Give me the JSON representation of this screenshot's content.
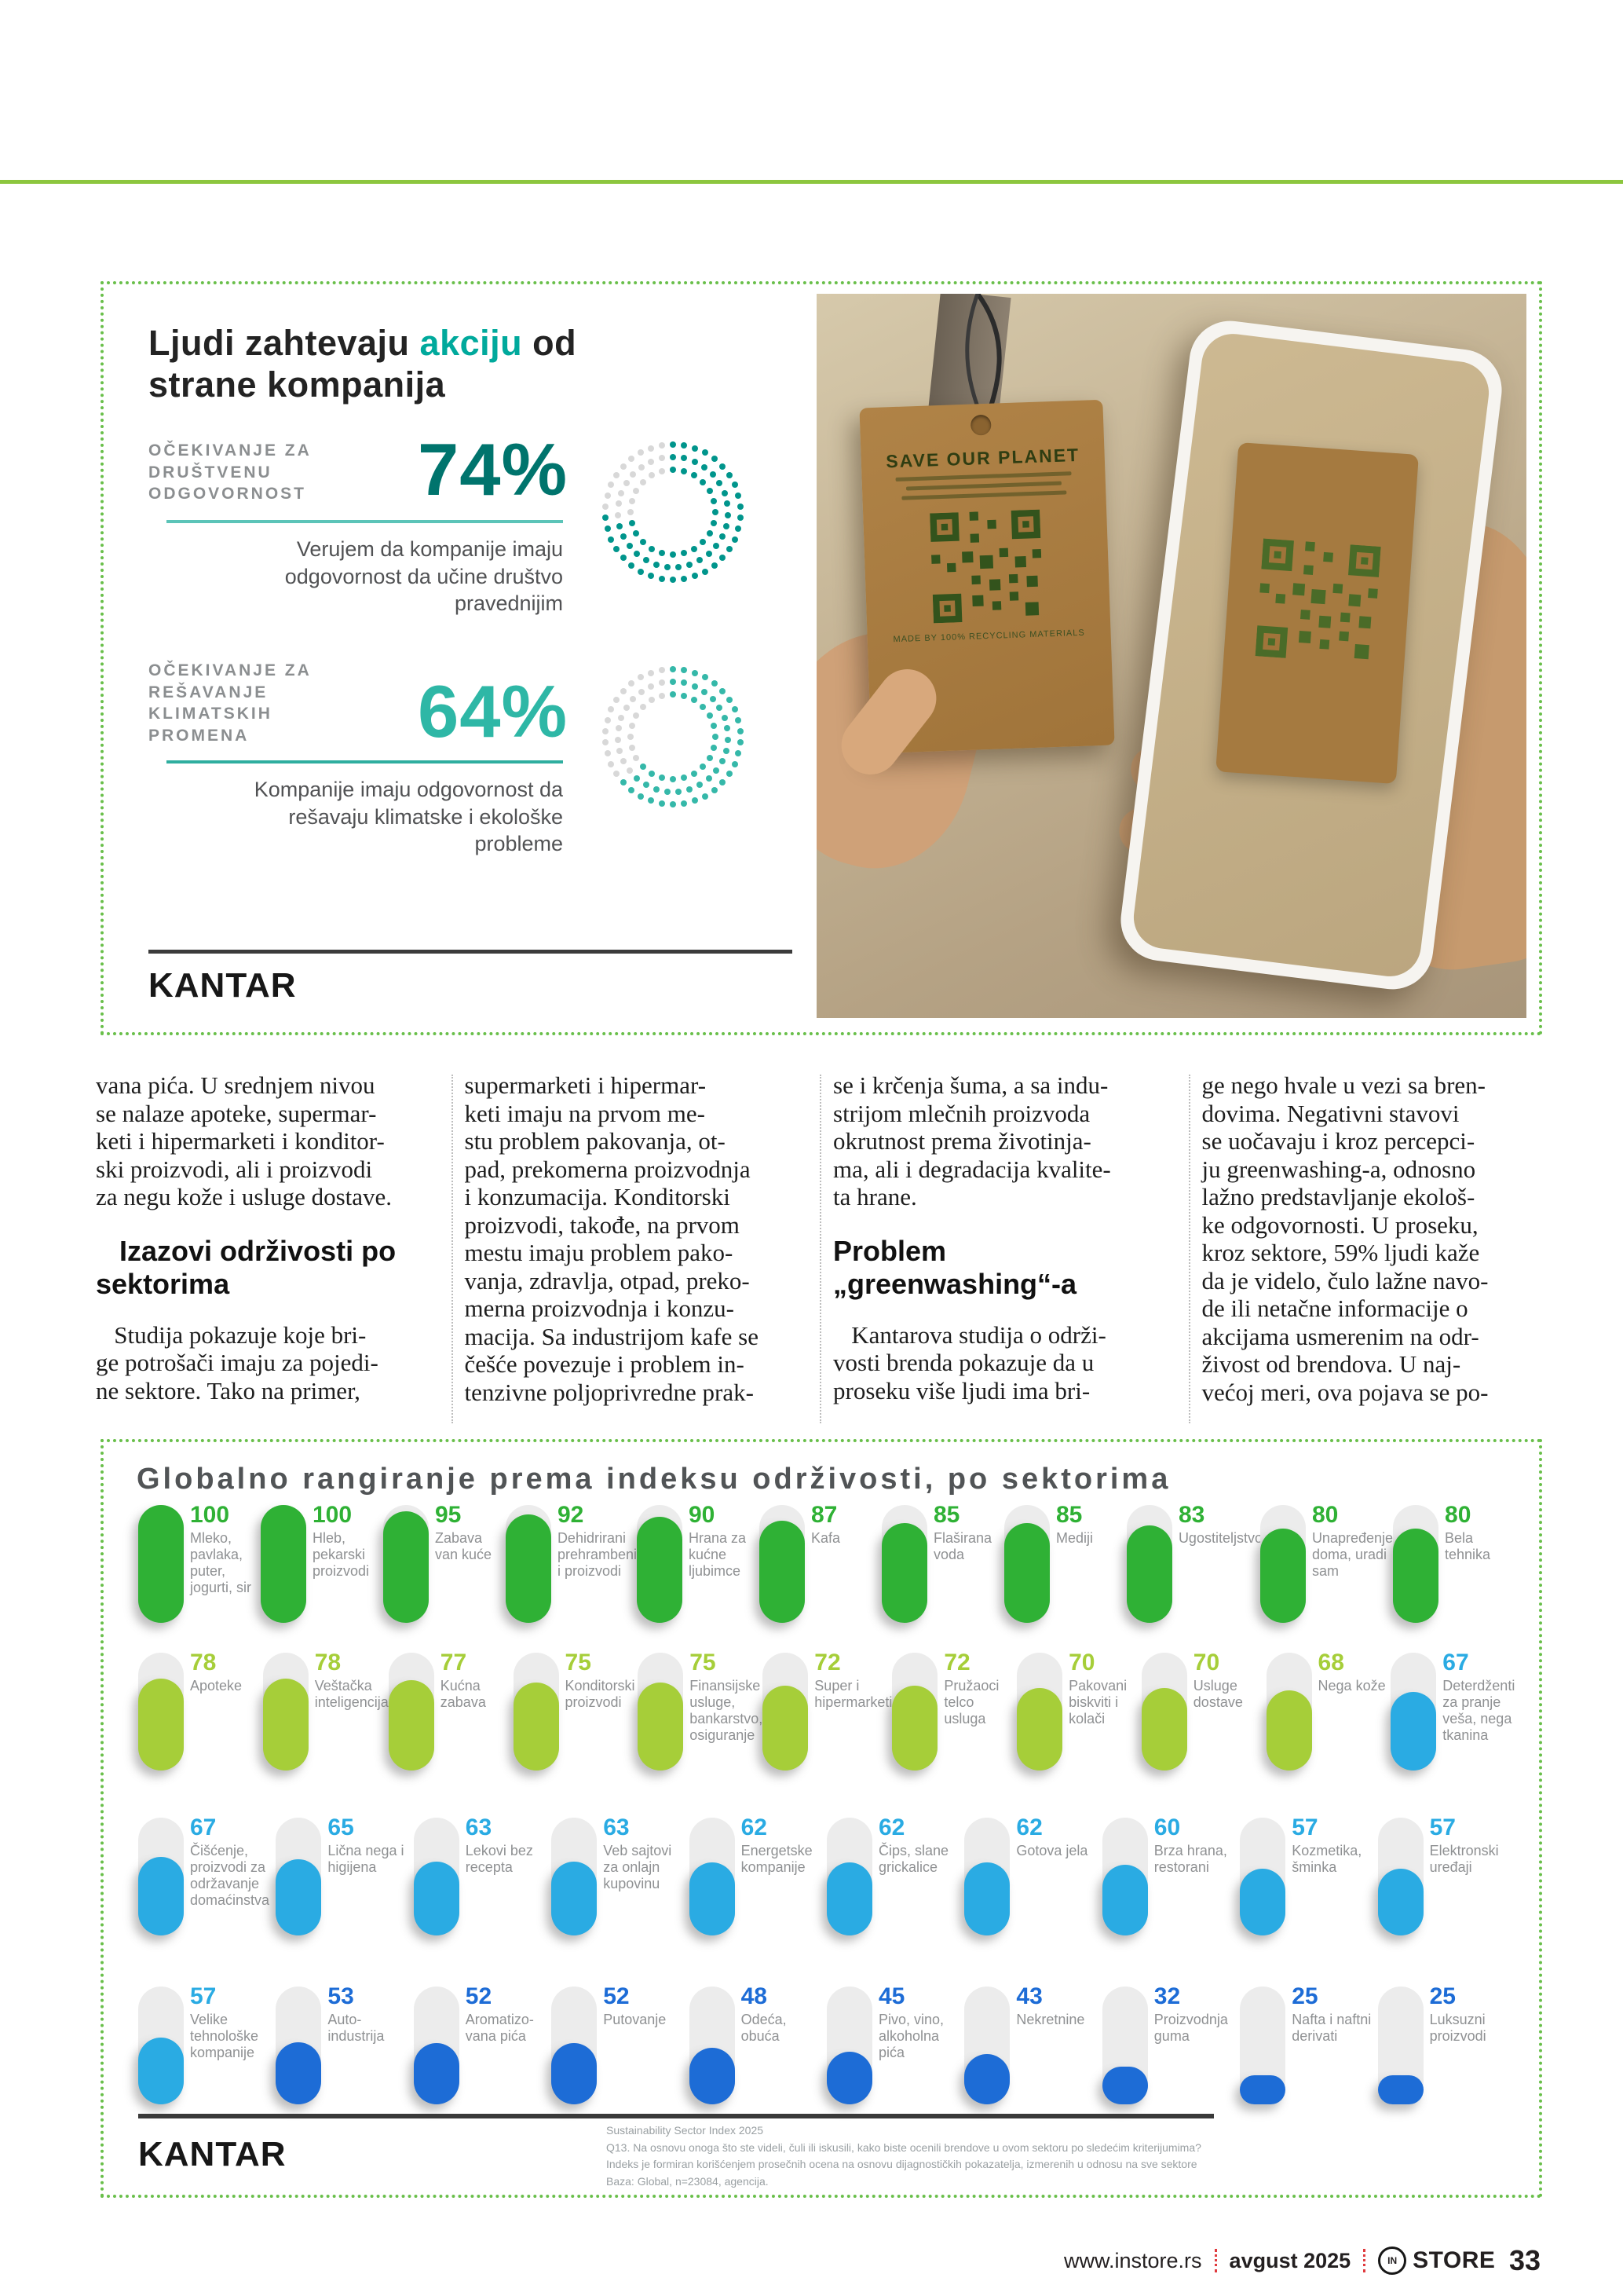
{
  "colors": {
    "top_rule": "#8cc63e",
    "box_border": "#69bf4a",
    "accent_teal": "#00a99c",
    "stat1_value": "#00746d",
    "stat2_value": "#2eb7a6",
    "donut_rest": "#d8d8d8",
    "bar_green": "#2fb135",
    "bar_lime": "#a6ce39",
    "bar_cyan": "#2aabe3",
    "bar_blue": "#1d6cd6"
  },
  "infographic": {
    "title_pre": "Ljudi zahtevaju ",
    "title_accent": "akciju",
    "title_post": " od",
    "title_line2": "strane kompanija",
    "brand": "KANTAR",
    "stats": [
      {
        "label_lines": [
          "OČEKIVANJE ZA",
          "DRUŠTVENU",
          "ODGOVORNOST"
        ],
        "value": "74%",
        "pct": 74,
        "value_color": "#00746d",
        "ring_color": "#00958c",
        "desc_lines": [
          "Verujem da kompanije imaju",
          "odgovornost da učine društvo",
          "pravednijim"
        ]
      },
      {
        "label_lines": [
          "OČEKIVANJE ZA",
          "REŠAVANJE",
          "KLIMATSKIH",
          "PROMENA"
        ],
        "value": "64%",
        "pct": 64,
        "value_color": "#2eb7a6",
        "ring_color": "#35b8a9",
        "desc_lines": [
          "Kompanije imaju odgovornost da",
          "rešavaju klimatske i ekološke",
          "probleme"
        ]
      }
    ],
    "photo": {
      "tag_title": "SAVE OUR PLANET",
      "tag_caption": "MADE BY 100% RECYCLING MATERIALS"
    }
  },
  "article": {
    "columns": [
      {
        "blocks": [
          {
            "type": "p",
            "lines": [
              "vana pića. U srednjem nivou",
              "se nalaze apoteke, supermar-",
              "keti i hipermarketi i konditor-",
              "ski proizvodi, ali i proizvodi",
              "za negu kože i usluge dostave."
            ]
          },
          {
            "type": "h",
            "lines": [
              "   Izazovi održivosti po",
              "sektorima"
            ]
          },
          {
            "type": "p",
            "lines": [
              "   Studija pokazuje koje bri-",
              "ge potrošači imaju za pojedi-",
              "ne sektore. Tako na primer,"
            ]
          }
        ]
      },
      {
        "blocks": [
          {
            "type": "p",
            "lines": [
              "supermarketi i hipermar-",
              "keti imaju na prvom me-",
              "stu problem pakovanja, ot-",
              "pad, prekomerna proizvodnja",
              "i konzumacija. Konditorski",
              "proizvodi, takođe, na prvom",
              "mestu imaju problem pako-",
              "vanja, zdravlja, otpad, preko-",
              "merna proizvodnja i konzu-",
              "macija. Sa industrijom kafe se",
              "češće povezuje i problem in-",
              "tenzivne poljoprivredne prak-"
            ]
          }
        ]
      },
      {
        "blocks": [
          {
            "type": "p",
            "lines": [
              "se i krčenja šuma, a sa indu-",
              "strijom mlečnih proizvoda",
              "okrutnost prema životinja-",
              "ma, ali i degradacija kvalite-",
              "ta hrane."
            ]
          },
          {
            "type": "h",
            "lines": [
              "Problem",
              "„greenwashing“-a"
            ]
          },
          {
            "type": "p",
            "lines": [
              "   Kantarova studija o održi-",
              "vosti brenda pokazuje da u",
              "proseku više ljudi ima bri-"
            ]
          }
        ]
      },
      {
        "blocks": [
          {
            "type": "p",
            "lines": [
              "ge nego hvale u vezi sa bren-",
              "dovima. Negativni stavovi",
              "se uočavaju i kroz percepci-",
              "ju greenwashing-a, odnosno",
              "lažno predstavljanje ekološ-",
              "ke odgovornosti. U proseku,",
              "kroz sektore, 59% ljudi kaže",
              "da je videlo, čulo lažne navo-",
              "de ili netačne informacije o",
              "akcijama usmerenim na odr-",
              "živost od brendova. U naj-",
              "većoj meri, ova pojava se po-"
            ]
          }
        ]
      }
    ]
  },
  "chart_data": {
    "type": "bar",
    "title": "Globalno rangiranje prema indeksu održivosti, po sektorima",
    "ylim": [
      0,
      100
    ],
    "brand": "KANTAR",
    "rows": [
      {
        "bar_color": "#2fb135",
        "top": 80,
        "items": [
          {
            "value": 100,
            "label": "Mleko, pavlaka, puter, jogurti, sir"
          },
          {
            "value": 100,
            "label": "Hleb, pekarski proizvodi"
          },
          {
            "value": 95,
            "label": "Zabava van kuće"
          },
          {
            "value": 92,
            "label": "Dehidrirani prehrambeni i proizvodi"
          },
          {
            "value": 90,
            "label": "Hrana za kućne ljubimce"
          },
          {
            "value": 87,
            "label": "Kafa"
          },
          {
            "value": 85,
            "label": "Flaširana voda"
          },
          {
            "value": 85,
            "label": "Mediji"
          },
          {
            "value": 83,
            "label": "Ugostiteljstvo"
          },
          {
            "value": 80,
            "label": "Unapređenje doma, uradi sam"
          },
          {
            "value": 80,
            "label": "Bela tehnika"
          }
        ]
      },
      {
        "bar_color": "#a6ce39",
        "top": 268,
        "items": [
          {
            "value": 78,
            "label": "Apoteke"
          },
          {
            "value": 78,
            "label": "Veštačka inteligencija"
          },
          {
            "value": 77,
            "label": "Kućna zabava"
          },
          {
            "value": 75,
            "label": "Konditorski proizvodi"
          },
          {
            "value": 75,
            "label": "Finansijske usluge, bankarstvo, osiguranje"
          },
          {
            "value": 72,
            "label": "Super i hipermarketi"
          },
          {
            "value": 72,
            "label": "Pružaoci telco usluga"
          },
          {
            "value": 70,
            "label": "Pakovani biskviti i kolači"
          },
          {
            "value": 70,
            "label": "Usluge dostave"
          },
          {
            "value": 68,
            "label": "Nega kože"
          },
          {
            "value": 67,
            "label": "Deterdženti za pranje veša, nega tkanina",
            "color": "#2aabe3"
          }
        ]
      },
      {
        "bar_color": "#2aabe3",
        "top": 478,
        "items": [
          {
            "value": 67,
            "label": "Čišćenje, proizvodi za održavanje domaćinstva"
          },
          {
            "value": 65,
            "label": "Lična nega i higijena"
          },
          {
            "value": 63,
            "label": "Lekovi bez recepta"
          },
          {
            "value": 63,
            "label": "Veb sajtovi za onlajn kupovinu"
          },
          {
            "value": 62,
            "label": "Energetske kompanije"
          },
          {
            "value": 62,
            "label": "Čips, slane grickalice"
          },
          {
            "value": 62,
            "label": "Gotova jela"
          },
          {
            "value": 60,
            "label": "Brza hrana, restorani"
          },
          {
            "value": 57,
            "label": "Kozmetika, šminka"
          },
          {
            "value": 57,
            "label": "Elektronski uređaji"
          }
        ]
      },
      {
        "bar_color": "#1d6cd6",
        "top": 693,
        "items": [
          {
            "value": 57,
            "label": "Velike tehnološke kompanije",
            "color": "#2aabe3"
          },
          {
            "value": 53,
            "label": "Auto-industrija"
          },
          {
            "value": 52,
            "label": "Aromatizo-\nvana pića"
          },
          {
            "value": 52,
            "label": "Putovanje"
          },
          {
            "value": 48,
            "label": "Odeća, obuća"
          },
          {
            "value": 45,
            "label": "Pivo, vino, alkoholna pića"
          },
          {
            "value": 43,
            "label": "Nekretnine"
          },
          {
            "value": 32,
            "label": "Proizvodnja guma"
          },
          {
            "value": 25,
            "label": "Nafta i naftni derivati"
          },
          {
            "value": 25,
            "label": "Luksuzni proizvodi"
          }
        ]
      }
    ],
    "footnote_lines": [
      "Sustainability Sector Index 2025",
      "Q13. Na osnovu onoga što ste videli, čuli ili iskusili, kako biste ocenili brendove u ovom sektoru po sledećim kriterijumima?",
      "Indeks je formiran korišćenjem prosečnih ocena na osnovu dijagnostičkih pokazatelja, izmerenih u odnosu na sve sektore",
      "Baza: Global, n=23084, agencija."
    ]
  },
  "footer": {
    "site": "www.instore.rs",
    "issue": "avgust 2025",
    "logo_text": "IN",
    "brand": "STORE",
    "page": "33"
  }
}
